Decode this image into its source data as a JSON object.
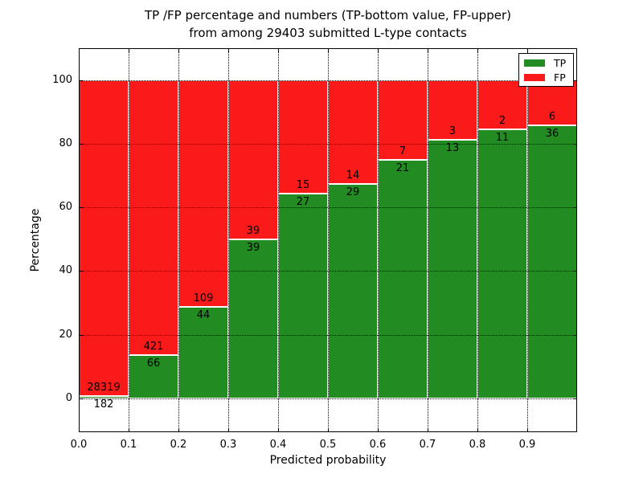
{
  "title": {
    "line1": "TP /FP percentage and numbers (TP-bottom value, FP-upper)",
    "line2": "from among 29403 submitted L-type contacts"
  },
  "axes": {
    "x_label": "Predicted probability",
    "y_label": "Percentage"
  },
  "legend": {
    "items": [
      {
        "label": "TP",
        "color": "#228B22"
      },
      {
        "label": "FP",
        "color": "#FA1A1A"
      }
    ]
  },
  "chart_data": {
    "type": "bar",
    "stacked": true,
    "normalized": "each bin scaled to 100%; labels show raw counts (TP bottom value, FP upper)",
    "title": "TP /FP percentage and numbers (TP-bottom value, FP-upper) from among 29403 submitted L-type contacts",
    "xlabel": "Predicted probability",
    "ylabel": "Percentage",
    "total_contacts": 29403,
    "bin_edges": [
      0.0,
      0.1,
      0.2,
      0.3,
      0.4,
      0.5,
      0.6,
      0.7,
      0.8,
      0.9,
      1.0
    ],
    "x_tick_labels": [
      "0.0",
      "0.1",
      "0.2",
      "0.3",
      "0.4",
      "0.5",
      "0.6",
      "0.7",
      "0.8",
      "0.9"
    ],
    "y_ticks": [
      0,
      20,
      40,
      60,
      80,
      100
    ],
    "xlim": [
      0,
      1
    ],
    "ylim": [
      -10.6,
      110
    ],
    "grid": true,
    "grid_style": "dotted",
    "legend_position": "upper right",
    "bar_edge_color": "#ffffff",
    "series": [
      {
        "name": "TP",
        "color": "#228B22",
        "counts": [
          182,
          66,
          44,
          39,
          27,
          29,
          21,
          13,
          11,
          36
        ]
      },
      {
        "name": "FP",
        "color": "#FA1A1A",
        "counts": [
          28319,
          421,
          109,
          39,
          15,
          14,
          7,
          3,
          2,
          6
        ]
      }
    ],
    "tp_percent_of_bin": [
      0.64,
      13.55,
      28.76,
      50.0,
      64.29,
      67.44,
      75.0,
      81.25,
      84.62,
      85.71
    ]
  }
}
